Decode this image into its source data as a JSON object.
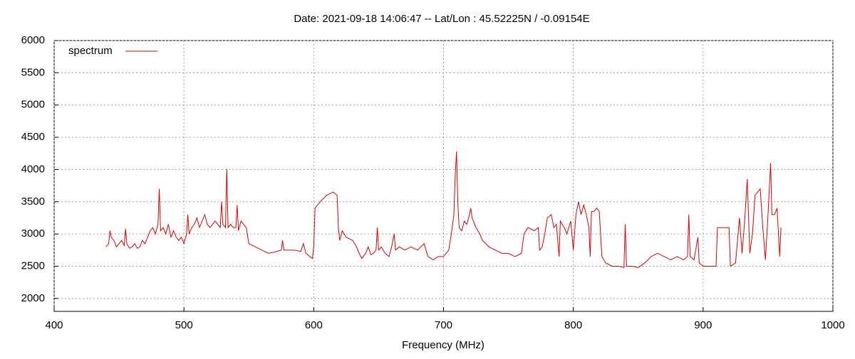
{
  "chart_data": {
    "type": "line",
    "title": "Date: 2021-09-18 14:06:47  --  Lat/Lon : 45.52225N / -0.09154E",
    "x_label": "Frequency (MHz)",
    "xlim": [
      400,
      1000
    ],
    "xticks": [
      400,
      500,
      600,
      700,
      800,
      900,
      1000
    ],
    "ylim": [
      1800,
      6000
    ],
    "yticks": [
      2000,
      2500,
      3000,
      3500,
      4000,
      4500,
      5000,
      5500,
      6000
    ],
    "grid": true,
    "legend": "top-left",
    "x": [
      440,
      442,
      443,
      444,
      446,
      448,
      450,
      452,
      454,
      455,
      456,
      458,
      460,
      462,
      464,
      466,
      468,
      470,
      472,
      474,
      476,
      478,
      480,
      481,
      482,
      484,
      486,
      488,
      490,
      492,
      494,
      496,
      498,
      500,
      502,
      503,
      504,
      506,
      508,
      510,
      512,
      514,
      516,
      518,
      520,
      522,
      524,
      526,
      528,
      529,
      530,
      532,
      533,
      534,
      536,
      538,
      540,
      541,
      542,
      544,
      546,
      548,
      550,
      555,
      560,
      565,
      570,
      575,
      576,
      577,
      580,
      585,
      590,
      592,
      594,
      597,
      599,
      600,
      601,
      605,
      610,
      615,
      618,
      619,
      620,
      622,
      625,
      630,
      633,
      635,
      637,
      640,
      642,
      644,
      646,
      648,
      649,
      650,
      652,
      655,
      658,
      660,
      662,
      663,
      666,
      670,
      675,
      680,
      685,
      688,
      692,
      696,
      700,
      704,
      706,
      708,
      709,
      710,
      711,
      712,
      714,
      716,
      718,
      720,
      721,
      722,
      725,
      728,
      730,
      735,
      740,
      745,
      750,
      755,
      760,
      762,
      765,
      770,
      773,
      774,
      776,
      778,
      780,
      783,
      785,
      787,
      789,
      790,
      793,
      795,
      798,
      800,
      802,
      804,
      806,
      808,
      810,
      812,
      813,
      814,
      816,
      818,
      820,
      822,
      825,
      830,
      835,
      839,
      840,
      841,
      845,
      850,
      855,
      860,
      865,
      870,
      875,
      880,
      885,
      888,
      889,
      890,
      893,
      896,
      897,
      900,
      905,
      910,
      911,
      915,
      920,
      921,
      925,
      928,
      930,
      932,
      934,
      936,
      938,
      940,
      942,
      944,
      946,
      948,
      950,
      952,
      953,
      955,
      957,
      959,
      960
    ],
    "series": [
      {
        "name": "spectrum",
        "color": "#e00000",
        "values": [
          2800,
          2850,
          3050,
          2950,
          2900,
          2800,
          2850,
          2900,
          2820,
          3080,
          2850,
          2780,
          2800,
          2850,
          2780,
          2800,
          2900,
          2850,
          2950,
          3050,
          3100,
          3000,
          3150,
          3700,
          3050,
          3100,
          3000,
          3150,
          2950,
          3050,
          2950,
          2900,
          2950,
          2850,
          3000,
          3300,
          3000,
          3100,
          3150,
          3250,
          3100,
          3200,
          3300,
          3150,
          3100,
          3150,
          3200,
          3150,
          3100,
          3500,
          3150,
          3100,
          4010,
          3100,
          3150,
          3100,
          3100,
          3450,
          3050,
          3200,
          3150,
          3100,
          2850,
          2800,
          2750,
          2700,
          2720,
          2750,
          2900,
          2750,
          2750,
          2750,
          2730,
          2850,
          2700,
          2650,
          2620,
          2800,
          3400,
          3500,
          3600,
          3650,
          3600,
          3100,
          2900,
          3050,
          2950,
          2900,
          2800,
          2700,
          2620,
          2700,
          2800,
          2680,
          2700,
          2750,
          3100,
          2750,
          2800,
          2700,
          2650,
          2800,
          3000,
          2750,
          2800,
          2750,
          2800,
          2750,
          2850,
          2650,
          2600,
          2650,
          2650,
          2750,
          3000,
          3300,
          3900,
          4280,
          3500,
          3100,
          3050,
          3200,
          3150,
          3300,
          3400,
          3250,
          3100,
          3000,
          2900,
          2800,
          2750,
          2700,
          2700,
          2650,
          2700,
          3000,
          3100,
          3050,
          3100,
          2750,
          2800,
          3000,
          3250,
          3300,
          3100,
          3150,
          2650,
          3200,
          3100,
          3000,
          3200,
          2750,
          3300,
          3500,
          3300,
          3450,
          3300,
          3100,
          2650,
          3350,
          3350,
          3400,
          3350,
          2650,
          2550,
          2500,
          2500,
          2480,
          3150,
          2500,
          2500,
          2480,
          2550,
          2650,
          2700,
          2650,
          2600,
          2650,
          2600,
          2650,
          3300,
          2650,
          2600,
          2950,
          2550,
          2500,
          2500,
          2500,
          3100,
          3100,
          3100,
          2500,
          2550,
          3250,
          2700,
          3200,
          3850,
          2700,
          3000,
          3600,
          3650,
          3700,
          3100,
          2600,
          3300,
          4100,
          3300,
          3300,
          3400,
          2650,
          3100
        ]
      }
    ]
  }
}
